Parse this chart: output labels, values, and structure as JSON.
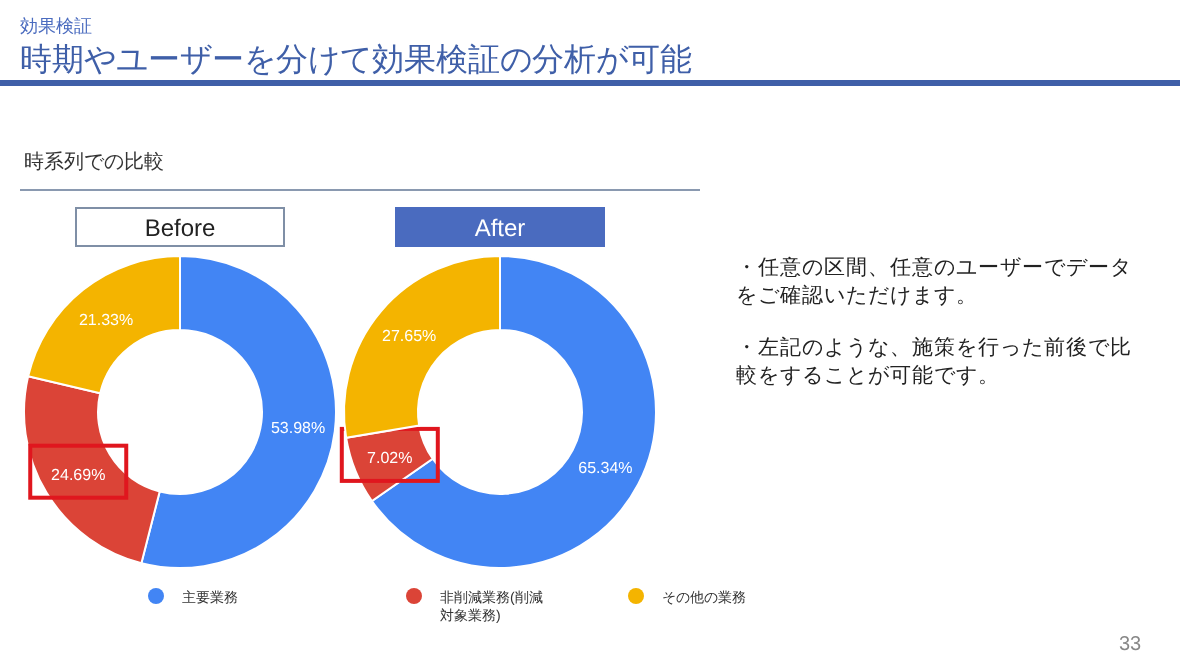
{
  "chart_data": [
    {
      "type": "donut",
      "title": "Before",
      "categories": [
        "主要業務",
        "非削減業務(削減対象業務)",
        "その他の業務"
      ],
      "values": [
        53.98,
        24.69,
        21.33
      ],
      "value_labels": [
        "53.98%",
        "24.69%",
        "21.33%"
      ],
      "colors": [
        "#4285f4",
        "#db4437",
        "#f4b400"
      ],
      "legend": "bottom"
    },
    {
      "type": "donut",
      "title": "After",
      "categories": [
        null,
        null,
        null
      ],
      "values": [
        65.34,
        7.02,
        27.65
      ],
      "value_labels": [
        "65.34%",
        "7.02%",
        "27.65%"
      ],
      "colors": [
        "#4285f4",
        "#db4437",
        "#f4b400"
      ]
    },
    {
      "type": "other",
      "subtitle": "効果検証",
      "title": "時期やユーザーを分けて効果検証の分析が可能",
      "annotations": [
        "時系列での比較",
        "・任意の区間、任意のユーザーでデータをご確認いただけます。",
        "・左記のような、施策を行った前後で比較をすることが可能です。",
        "33"
      ]
    }
  ]
}
